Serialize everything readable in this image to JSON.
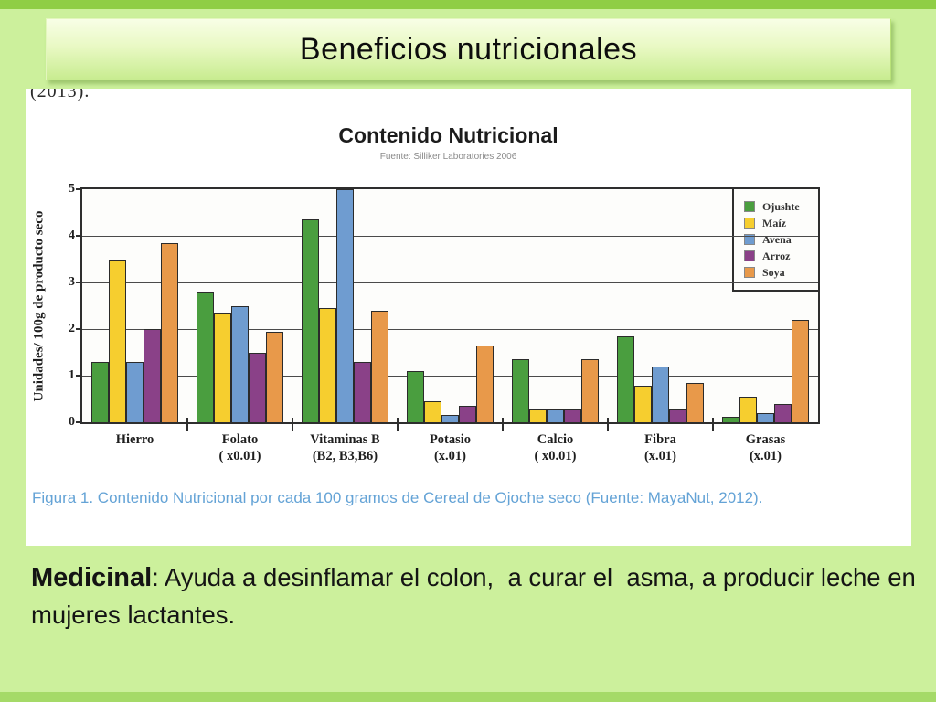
{
  "slide": {
    "title": "Beneficios nutricionales",
    "page_fragment": "(2013).",
    "figure_caption": "Figura 1. Contenido Nutricional por cada 100 gramos de Cereal de Ojoche seco (Fuente: MayaNut, 2012).",
    "body_bold": "Medicinal",
    "body_text": ": Ayuda a desinflamar el colon,  a curar el  asma, a producir leche en mujeres lactantes."
  },
  "colors": {
    "slide_background": "#ccf09c",
    "top_strip": "#8fce45",
    "bottom_strip": "#a5da68",
    "header_fill": "#e9f9c4",
    "caption_blue": "#64a3d6"
  },
  "chart_data": {
    "type": "bar",
    "title": "Contenido Nutricional",
    "subtitle": "Fuente: Silliker Laboratories 2006",
    "ylabel": "Unidades/ 100g de producto seco",
    "xlabel": "",
    "ylim": [
      0,
      5
    ],
    "yticks": [
      0,
      1,
      2,
      3,
      4,
      5
    ],
    "grid": true,
    "legend_position": "top-right",
    "categories": [
      {
        "label": "Hierro",
        "sub": ""
      },
      {
        "label": "Folato",
        "sub": "( x0.01)"
      },
      {
        "label": "Vitaminas B",
        "sub": "(B2, B3,B6)"
      },
      {
        "label": "Potasio",
        "sub": "(x.01)"
      },
      {
        "label": "Calcio",
        "sub": "( x0.01)"
      },
      {
        "label": "Fibra",
        "sub": "(x.01)"
      },
      {
        "label": "Grasas",
        "sub": "(x.01)"
      }
    ],
    "series": [
      {
        "name": "Ojushte",
        "color": "#4a9e3f",
        "values": [
          1.3,
          2.8,
          4.35,
          1.1,
          1.35,
          1.85,
          0.12
        ]
      },
      {
        "name": "Maíz",
        "color": "#f6ce2f",
        "values": [
          3.5,
          2.35,
          2.45,
          0.45,
          0.3,
          0.78,
          0.55
        ]
      },
      {
        "name": "Avena",
        "color": "#6f9cd0",
        "values": [
          1.3,
          2.5,
          5.0,
          0.15,
          0.3,
          1.2,
          0.2
        ]
      },
      {
        "name": "Arroz",
        "color": "#8a4188",
        "values": [
          2.0,
          1.5,
          1.3,
          0.35,
          0.3,
          0.3,
          0.4
        ]
      },
      {
        "name": "Soya",
        "color": "#e8994a",
        "values": [
          3.85,
          1.95,
          2.4,
          1.65,
          1.35,
          0.85,
          2.2
        ]
      }
    ]
  }
}
